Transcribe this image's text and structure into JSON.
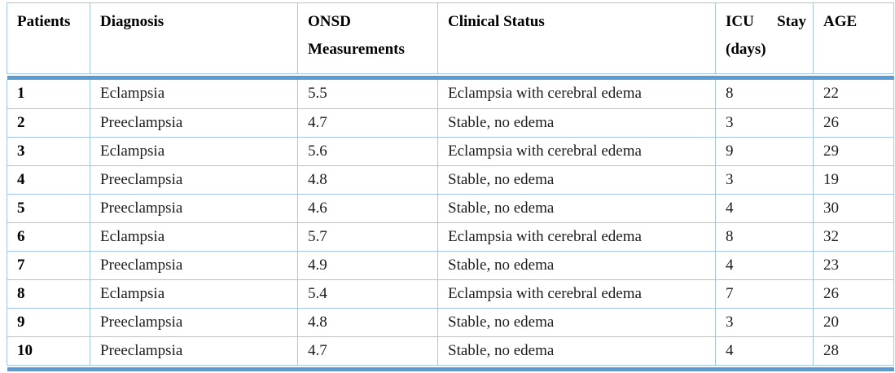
{
  "colors": {
    "grid_border": "#a3c6ea",
    "accent_rule": "#5b9bd5",
    "text": "#1c1c1c"
  },
  "table": {
    "header": {
      "patients": "Patients",
      "diagnosis": "Diagnosis",
      "onsd_line1": "ONSD",
      "onsd_line2": "Measurements",
      "clinical_status": "Clinical Status",
      "icu_line1": "ICU Stay",
      "icu_line2": "(days)",
      "age": "AGE"
    },
    "rows": [
      {
        "patient": "1",
        "diagnosis": "Eclampsia",
        "onsd": "5.5",
        "status": "Eclampsia with cerebral edema",
        "icu": "8",
        "age": "22"
      },
      {
        "patient": "2",
        "diagnosis": "Preeclampsia",
        "onsd": "4.7",
        "status": "Stable, no edema",
        "icu": "3",
        "age": "26"
      },
      {
        "patient": "3",
        "diagnosis": "Eclampsia",
        "onsd": "5.6",
        "status": "Eclampsia with cerebral edema",
        "icu": "9",
        "age": "29"
      },
      {
        "patient": "4",
        "diagnosis": "Preeclampsia",
        "onsd": "4.8",
        "status": "Stable, no edema",
        "icu": "3",
        "age": "19"
      },
      {
        "patient": "5",
        "diagnosis": "Preeclampsia",
        "onsd": "4.6",
        "status": "Stable, no edema",
        "icu": "4",
        "age": "30"
      },
      {
        "patient": "6",
        "diagnosis": "Eclampsia",
        "onsd": "5.7",
        "status": "Eclampsia with cerebral edema",
        "icu": "8",
        "age": "32"
      },
      {
        "patient": "7",
        "diagnosis": "Preeclampsia",
        "onsd": "4.9",
        "status": "Stable, no edema",
        "icu": "4",
        "age": "23"
      },
      {
        "patient": "8",
        "diagnosis": "Eclampsia",
        "onsd": "5.4",
        "status": "Eclampsia with cerebral edema",
        "icu": "7",
        "age": "26"
      },
      {
        "patient": "9",
        "diagnosis": "Preeclampsia",
        "onsd": "4.8",
        "status": "Stable, no edema",
        "icu": "3",
        "age": "20"
      },
      {
        "patient": "10",
        "diagnosis": "Preeclampsia",
        "onsd": "4.7",
        "status": "Stable, no edema",
        "icu": "4",
        "age": "28"
      }
    ]
  }
}
